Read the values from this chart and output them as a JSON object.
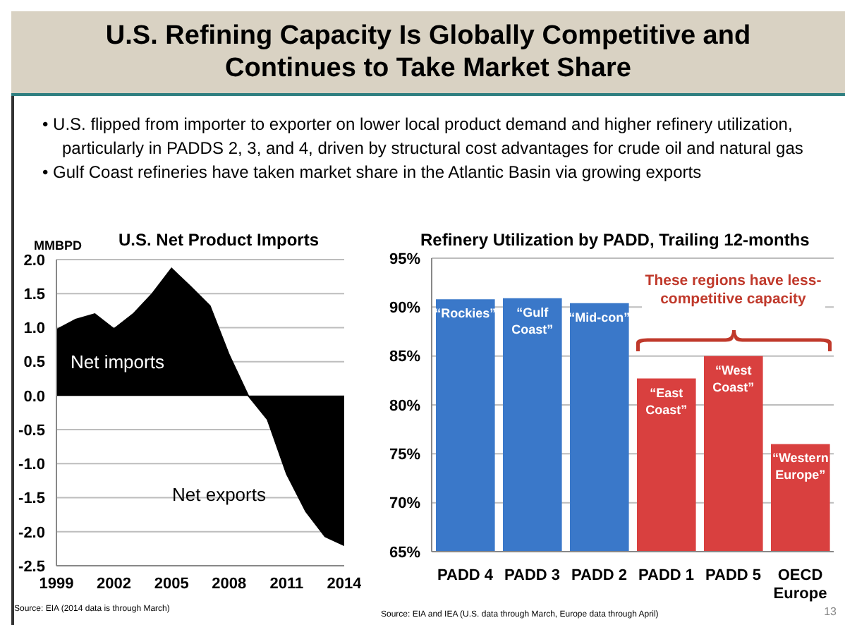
{
  "chart_data": [
    {
      "type": "other",
      "title": "U.S. Refining Capacity Is Globally Competitive and Continues to Take Market Share",
      "annotations": [
        "• U.S. flipped from importer to exporter on lower local product demand and higher refinery utilization, particularly in PADDS 2, 3, and 4, driven by structural cost advantages for crude oil and natural gas",
        "• Gulf Coast refineries have taken market share in the Atlantic Basin via growing exports"
      ]
    },
    {
      "type": "area",
      "title": "U.S. Net Product Imports",
      "ylabel": "MMBPD",
      "x": [
        1999,
        2000,
        2001,
        2002,
        2003,
        2004,
        2005,
        2006,
        2007,
        2008,
        2009,
        2010,
        2011,
        2012,
        2013,
        2014
      ],
      "values": [
        0.97,
        1.12,
        1.2,
        0.98,
        1.2,
        1.5,
        1.87,
        1.6,
        1.32,
        0.6,
        0.0,
        -0.35,
        -1.15,
        -1.7,
        -2.07,
        -2.2
      ],
      "color": "#000000",
      "xlim": [
        1999,
        2014
      ],
      "xticks": [
        1999,
        2002,
        2005,
        2008,
        2011,
        2014
      ],
      "ylim": [
        -2.5,
        2
      ],
      "yticks": [
        {
          "value": -2.5,
          "label": "-2.5"
        },
        {
          "value": -2,
          "label": "-2.0"
        },
        {
          "value": -1.5,
          "label": "-1.5"
        },
        {
          "value": -1,
          "label": "-1.0"
        },
        {
          "value": -0.5,
          "label": "-0.5"
        },
        {
          "value": 0,
          "label": "0.0"
        },
        {
          "value": 0.5,
          "label": "0.5"
        },
        {
          "value": 1,
          "label": "1.0"
        },
        {
          "value": 1.5,
          "label": "1.5"
        },
        {
          "value": 2,
          "label": "2.0"
        }
      ],
      "grid": "y",
      "annotations": [
        "Net imports",
        "Net exports",
        "Source:  EIA (2014 data is through March)"
      ]
    },
    {
      "type": "bar",
      "title": "Refinery Utilization by PADD, Trailing 12-months",
      "categories": [
        "PADD 4",
        "PADD 3",
        "PADD 2",
        "PADD 1",
        "PADD 5",
        "OECD Europe"
      ],
      "values": [
        90.8,
        90.9,
        90.4,
        82.7,
        85.0,
        76.0
      ],
      "colors": [
        "#3a78c9",
        "#3a78c9",
        "#3a78c9",
        "#d9403f",
        "#d9403f",
        "#d9403f"
      ],
      "value_labels": [
        "“Rockies”",
        "“Gulf Coast”",
        "“Mid-con”",
        "“East Coast”",
        "“West Coast”",
        "“Western Europe”"
      ],
      "ylim": [
        65,
        95
      ],
      "yticks": [
        {
          "value": 65,
          "label": "65%"
        },
        {
          "value": 70,
          "label": "70%"
        },
        {
          "value": 75,
          "label": "75%"
        },
        {
          "value": 80,
          "label": "80%"
        },
        {
          "value": 85,
          "label": "85%"
        },
        {
          "value": 90,
          "label": "90%"
        },
        {
          "value": 95,
          "label": "95%"
        }
      ],
      "grid": "y",
      "annotations": [
        "These regions have less-competitive capacity",
        "Source:  EIA and IEA (U.S. data through March, Europe data through April)",
        "13"
      ]
    }
  ]
}
